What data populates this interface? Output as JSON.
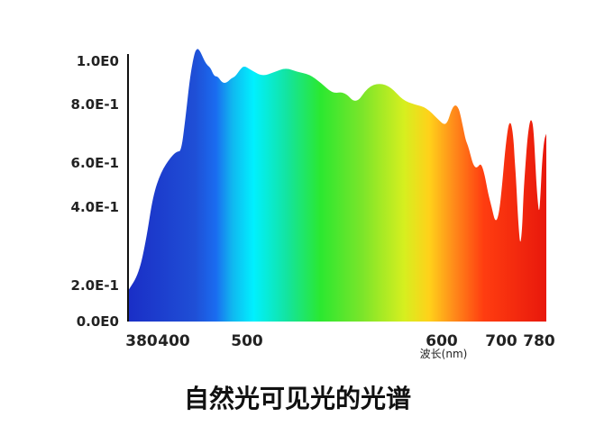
{
  "chart_data": {
    "type": "area",
    "title": "自然光可见光的光谱",
    "xlabel": "波长(nm)",
    "ylabel": "",
    "x_ticks": [
      {
        "value": 380,
        "label": "380"
      },
      {
        "value": 400,
        "label": "400"
      },
      {
        "value": 500,
        "label": "500"
      },
      {
        "value": 600,
        "label": "600"
      },
      {
        "value": 700,
        "label": "700"
      },
      {
        "value": 780,
        "label": "780"
      }
    ],
    "y_ticks": [
      {
        "value": 0.0,
        "label": "0.0E0"
      },
      {
        "value": 0.2,
        "label": "2.0E-1"
      },
      {
        "value": 0.4,
        "label": "4.0E-1"
      },
      {
        "value": 0.6,
        "label": "6.0E-1"
      },
      {
        "value": 0.8,
        "label": "8.0E-1"
      },
      {
        "value": 1.0,
        "label": "1.0E0"
      }
    ],
    "xlim": [
      375,
      790
    ],
    "ylim": [
      0,
      1.0
    ],
    "grid": false,
    "fill": "visible-spectrum-gradient",
    "series": [
      {
        "x": [
          375,
          379,
          383,
          387,
          392,
          398,
          404,
          410,
          416,
          422,
          428,
          432,
          435,
          438,
          442,
          446,
          450,
          455,
          460,
          466,
          472,
          478,
          484,
          490,
          496,
          502,
          508,
          514,
          520,
          526,
          532,
          538,
          544,
          550,
          556,
          562,
          568,
          574,
          580,
          586,
          592,
          598,
          604,
          610,
          616,
          622,
          628,
          632,
          636,
          640,
          644,
          648,
          652,
          656,
          660,
          666,
          672,
          678,
          684,
          690,
          696,
          702,
          708,
          714,
          718,
          722,
          726,
          728,
          732,
          736,
          740,
          744,
          747,
          750,
          755,
          760,
          764,
          768,
          772,
          776,
          780,
          782,
          784,
          787,
          790
        ],
        "values": [
          0.17,
          0.23,
          0.32,
          0.45,
          0.56,
          0.62,
          0.64,
          0.64,
          0.76,
          0.93,
          1.04,
          1.06,
          1.05,
          1.03,
          1.0,
          0.98,
          0.97,
          0.93,
          0.93,
          0.9,
          0.9,
          0.92,
          0.93,
          0.96,
          0.98,
          0.96,
          0.93,
          0.95,
          0.97,
          0.95,
          0.94,
          0.9,
          0.85,
          0.86,
          0.8,
          0.88,
          0.9,
          0.88,
          0.82,
          0.8,
          0.79,
          0.75,
          0.73,
          0.74,
          0.78,
          0.8,
          0.79,
          0.76,
          0.72,
          0.68,
          0.66,
          0.63,
          0.6,
          0.58,
          0.58,
          0.6,
          0.55,
          0.46,
          0.4,
          0.36,
          0.38,
          0.5,
          0.64,
          0.72,
          0.74,
          0.73,
          0.68,
          0.62,
          0.5,
          0.36,
          0.3,
          0.34,
          0.46,
          0.56,
          0.68,
          0.74,
          0.75,
          0.72,
          0.6,
          0.45,
          0.38,
          0.46,
          0.6,
          0.68,
          0.7
        ]
      }
    ]
  }
}
